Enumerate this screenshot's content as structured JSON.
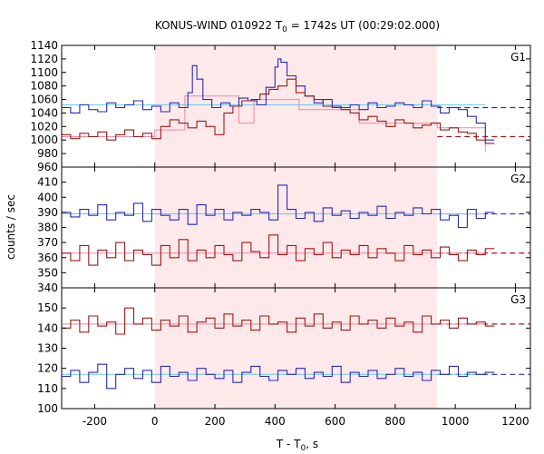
{
  "chart_data": {
    "type": "line",
    "title_main": "KONUS-WIND 010922 T",
    "title_sub": "0",
    "title_rest": " = 1742s UT (00:29:02.000)",
    "xlabel_main": "T - T",
    "xlabel_sub": "0",
    "xlabel_rest": ", s",
    "ylabel": "counts / sec",
    "xlim": [
      -310,
      1250
    ],
    "xticks": [
      -200,
      0,
      200,
      400,
      600,
      800,
      1000,
      1200
    ],
    "xtick_labels": [
      "-200",
      "0",
      "200",
      "400",
      "600",
      "800",
      "1000",
      "1200"
    ],
    "shaded_interval": [
      0,
      940
    ],
    "colors": {
      "blue": "#2a2ab8",
      "red": "#a01818",
      "light_blue": "#66ccee",
      "light_red": "#ee88a8",
      "shade": "#fde8ea"
    },
    "panels": [
      {
        "label": "G1",
        "ylim": [
          960,
          1140
        ],
        "yticks": [
          960,
          980,
          1000,
          1020,
          1040,
          1060,
          1080,
          1100,
          1120,
          1140
        ],
        "ytick_labels": [
          "960",
          "980",
          "1000",
          "1020",
          "1040",
          "1060",
          "1080",
          "1100",
          "1120",
          "1140"
        ],
        "series": [
          {
            "color": "blue",
            "x": [
              -310,
              -280,
              -250,
              -220,
              -190,
              -160,
              -130,
              -100,
              -70,
              -40,
              -10,
              20,
              50,
              80,
              110,
              125,
              140,
              160,
              190,
              220,
              250,
              280,
              310,
              340,
              370,
              400,
              410,
              420,
              440,
              470,
              500,
              530,
              560,
              590,
              620,
              650,
              680,
              710,
              740,
              770,
              800,
              830,
              860,
              890,
              920,
              950,
              980,
              1010,
              1040,
              1070,
              1100
            ],
            "y": [
              1048,
              1040,
              1052,
              1045,
              1042,
              1055,
              1048,
              1052,
              1058,
              1045,
              1050,
              1042,
              1055,
              1048,
              1070,
              1110,
              1090,
              1060,
              1048,
              1055,
              1050,
              1062,
              1058,
              1052,
              1078,
              1108,
              1120,
              1115,
              1095,
              1080,
              1065,
              1055,
              1060,
              1050,
              1048,
              1052,
              1045,
              1055,
              1048,
              1050,
              1055,
              1052,
              1048,
              1058,
              1050,
              1040,
              1048,
              1045,
              1035,
              1025,
              1000
            ]
          },
          {
            "color": "red",
            "x": [
              -310,
              -280,
              -250,
              -220,
              -190,
              -160,
              -130,
              -100,
              -70,
              -40,
              -10,
              20,
              50,
              80,
              110,
              140,
              170,
              200,
              230,
              260,
              290,
              320,
              350,
              380,
              410,
              440,
              470,
              500,
              530,
              560,
              590,
              620,
              650,
              680,
              710,
              740,
              770,
              800,
              830,
              860,
              890,
              920,
              950,
              980,
              1010,
              1040,
              1070,
              1100
            ],
            "y": [
              1008,
              1002,
              1010,
              1005,
              1012,
              1000,
              1008,
              1015,
              1005,
              1010,
              1002,
              1020,
              1030,
              1025,
              1018,
              1028,
              1020,
              1008,
              1040,
              1050,
              1058,
              1060,
              1068,
              1075,
              1080,
              1090,
              1070,
              1065,
              1060,
              1050,
              1048,
              1045,
              1040,
              1030,
              1035,
              1028,
              1020,
              1030,
              1025,
              1018,
              1022,
              1025,
              1015,
              1018,
              1012,
              1010,
              1000,
              995
            ]
          }
        ],
        "fit_lines": [
          {
            "color": "light_blue",
            "x": [
              -310,
              1100
            ],
            "y": [
              1052,
              1052
            ]
          },
          {
            "color": "light_red",
            "x": [
              -310,
              0,
              0,
              100,
              100,
              280,
              280,
              330,
              330,
              480,
              480,
              680,
              680,
              940,
              940,
              1100,
              1100
            ],
            "y": [
              1005,
              1005,
              1015,
              1015,
              1065,
              1065,
              1025,
              1025,
              1060,
              1060,
              1045,
              1045,
              1025,
              1025,
              1018,
              1018,
              982
            ]
          }
        ],
        "background_lines": [
          {
            "color": "blue",
            "y": 1048,
            "x": [
              940,
              1250
            ]
          },
          {
            "color": "red",
            "y": 1005,
            "x": [
              940,
              1250
            ]
          }
        ]
      },
      {
        "label": "G2",
        "ylim": [
          340,
          420
        ],
        "yticks": [
          340,
          350,
          360,
          370,
          380,
          390,
          400,
          410
        ],
        "ytick_labels": [
          "340",
          "350",
          "360",
          "370",
          "380",
          "390",
          "400",
          "410"
        ],
        "series": [
          {
            "color": "blue",
            "x": [
              -310,
              -280,
              -250,
              -220,
              -190,
              -160,
              -130,
              -100,
              -70,
              -40,
              -10,
              20,
              50,
              80,
              110,
              140,
              170,
              200,
              230,
              260,
              290,
              320,
              350,
              380,
              410,
              440,
              470,
              500,
              530,
              560,
              590,
              620,
              650,
              680,
              710,
              740,
              770,
              800,
              830,
              860,
              890,
              920,
              950,
              980,
              1010,
              1040,
              1070,
              1100
            ],
            "y": [
              390,
              387,
              392,
              388,
              395,
              385,
              390,
              388,
              396,
              384,
              392,
              388,
              385,
              392,
              382,
              395,
              388,
              392,
              385,
              390,
              388,
              392,
              390,
              385,
              408,
              392,
              386,
              390,
              384,
              393,
              388,
              391,
              386,
              390,
              388,
              394,
              386,
              390,
              388,
              393,
              389,
              392,
              385,
              388,
              380,
              392,
              386,
              390
            ]
          },
          {
            "color": "red",
            "x": [
              -310,
              -280,
              -250,
              -220,
              -190,
              -160,
              -130,
              -100,
              -70,
              -40,
              -10,
              20,
              50,
              80,
              110,
              140,
              170,
              200,
              230,
              260,
              290,
              320,
              350,
              380,
              410,
              440,
              470,
              500,
              530,
              560,
              590,
              620,
              650,
              680,
              710,
              740,
              770,
              800,
              830,
              860,
              890,
              920,
              950,
              980,
              1010,
              1040,
              1070,
              1100
            ],
            "y": [
              363,
              358,
              368,
              355,
              365,
              360,
              370,
              358,
              365,
              362,
              355,
              368,
              360,
              372,
              358,
              365,
              360,
              368,
              362,
              358,
              370,
              364,
              360,
              375,
              362,
              368,
              358,
              366,
              362,
              370,
              360,
              365,
              362,
              368,
              360,
              366,
              363,
              358,
              368,
              362,
              365,
              360,
              367,
              362,
              358,
              365,
              362,
              366
            ]
          }
        ],
        "fit_lines": [
          {
            "color": "light_blue",
            "x": [
              -310,
              1100
            ],
            "y": [
              389,
              389
            ]
          },
          {
            "color": "light_red",
            "x": [
              -310,
              1100
            ],
            "y": [
              363,
              363
            ]
          }
        ],
        "background_lines": [
          {
            "color": "blue",
            "y": 389,
            "x": [
              940,
              1250
            ]
          },
          {
            "color": "red",
            "y": 363,
            "x": [
              940,
              1250
            ]
          }
        ]
      },
      {
        "label": "G3",
        "ylim": [
          100,
          160
        ],
        "yticks": [
          100,
          110,
          120,
          130,
          140,
          150
        ],
        "ytick_labels": [
          "100",
          "110",
          "120",
          "130",
          "140",
          "150"
        ],
        "series": [
          {
            "color": "red",
            "x": [
              -310,
              -280,
              -250,
              -220,
              -190,
              -160,
              -130,
              -100,
              -70,
              -40,
              -10,
              20,
              50,
              80,
              110,
              140,
              170,
              200,
              230,
              260,
              290,
              320,
              350,
              380,
              410,
              440,
              470,
              500,
              530,
              560,
              590,
              620,
              650,
              680,
              710,
              740,
              770,
              800,
              830,
              860,
              890,
              920,
              950,
              980,
              1010,
              1040,
              1070,
              1100
            ],
            "y": [
              140,
              144,
              138,
              146,
              141,
              143,
              137,
              150,
              142,
              145,
              139,
              144,
              141,
              146,
              138,
              143,
              145,
              140,
              147,
              141,
              144,
              139,
              146,
              142,
              143,
              138,
              145,
              141,
              147,
              140,
              143,
              139,
              146,
              142,
              144,
              140,
              145,
              141,
              143,
              138,
              146,
              142,
              144,
              140,
              145,
              142,
              143,
              141
            ]
          },
          {
            "color": "blue",
            "x": [
              -310,
              -280,
              -250,
              -220,
              -190,
              -160,
              -130,
              -100,
              -70,
              -40,
              -10,
              20,
              50,
              80,
              110,
              140,
              170,
              200,
              230,
              260,
              290,
              320,
              350,
              380,
              410,
              440,
              470,
              500,
              530,
              560,
              590,
              620,
              650,
              680,
              710,
              740,
              770,
              800,
              830,
              860,
              890,
              920,
              950,
              980,
              1010,
              1040,
              1070,
              1100
            ],
            "y": [
              116,
              119,
              113,
              118,
              122,
              110,
              117,
              120,
              115,
              119,
              113,
              121,
              116,
              118,
              114,
              120,
              117,
              115,
              119,
              113,
              118,
              121,
              116,
              114,
              119,
              117,
              120,
              115,
              118,
              116,
              121,
              113,
              118,
              116,
              119,
              115,
              117,
              120,
              116,
              118,
              114,
              119,
              117,
              121,
              116,
              118,
              117,
              118
            ]
          }
        ],
        "fit_lines": [
          {
            "color": "light_red",
            "x": [
              -310,
              1100
            ],
            "y": [
              142,
              142
            ]
          },
          {
            "color": "light_blue",
            "x": [
              -310,
              1100
            ],
            "y": [
              117,
              117
            ]
          }
        ],
        "background_lines": [
          {
            "color": "red",
            "y": 142,
            "x": [
              940,
              1250
            ]
          },
          {
            "color": "blue",
            "y": 117,
            "x": [
              940,
              1250
            ]
          }
        ]
      }
    ]
  }
}
